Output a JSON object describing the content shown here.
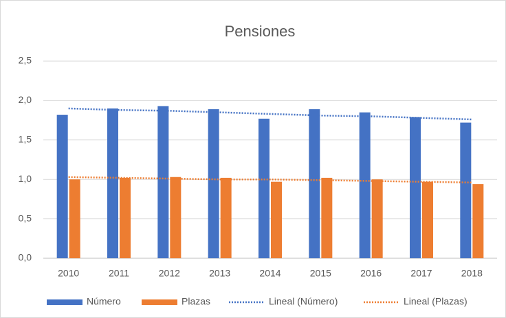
{
  "chart_data": {
    "type": "bar",
    "title": "Pensiones",
    "categories": [
      "2010",
      "2011",
      "2012",
      "2013",
      "2014",
      "2015",
      "2016",
      "2017",
      "2018"
    ],
    "series": [
      {
        "name": "Número",
        "color": "#4472c4",
        "values": [
          1.82,
          1.9,
          1.93,
          1.89,
          1.77,
          1.89,
          1.85,
          1.79,
          1.72
        ]
      },
      {
        "name": "Plazas",
        "color": "#ed7d31",
        "values": [
          1.0,
          1.02,
          1.03,
          1.02,
          0.97,
          1.02,
          1.0,
          0.97,
          0.94
        ]
      },
      {
        "name": "Lineal (Número)",
        "color": "#4472c4",
        "type": "line",
        "dash": "dotted",
        "values": [
          1.9,
          1.88,
          1.87,
          1.85,
          1.83,
          1.81,
          1.8,
          1.78,
          1.76
        ]
      },
      {
        "name": "Lineal (Plazas)",
        "color": "#ed7d31",
        "type": "line",
        "dash": "dotted",
        "values": [
          1.03,
          1.02,
          1.01,
          1.0,
          1.0,
          0.99,
          0.98,
          0.97,
          0.96
        ]
      }
    ],
    "ylim": [
      0,
      2.5
    ],
    "yticks": [
      {
        "value": 0,
        "label": "0,0"
      },
      {
        "value": 0.5,
        "label": "0,5"
      },
      {
        "value": 1,
        "label": "1,0"
      },
      {
        "value": 1.5,
        "label": "1,5"
      },
      {
        "value": 2,
        "label": "2,0"
      },
      {
        "value": 2.5,
        "label": "2,5"
      }
    ],
    "grid": true,
    "legend": "bottom"
  }
}
